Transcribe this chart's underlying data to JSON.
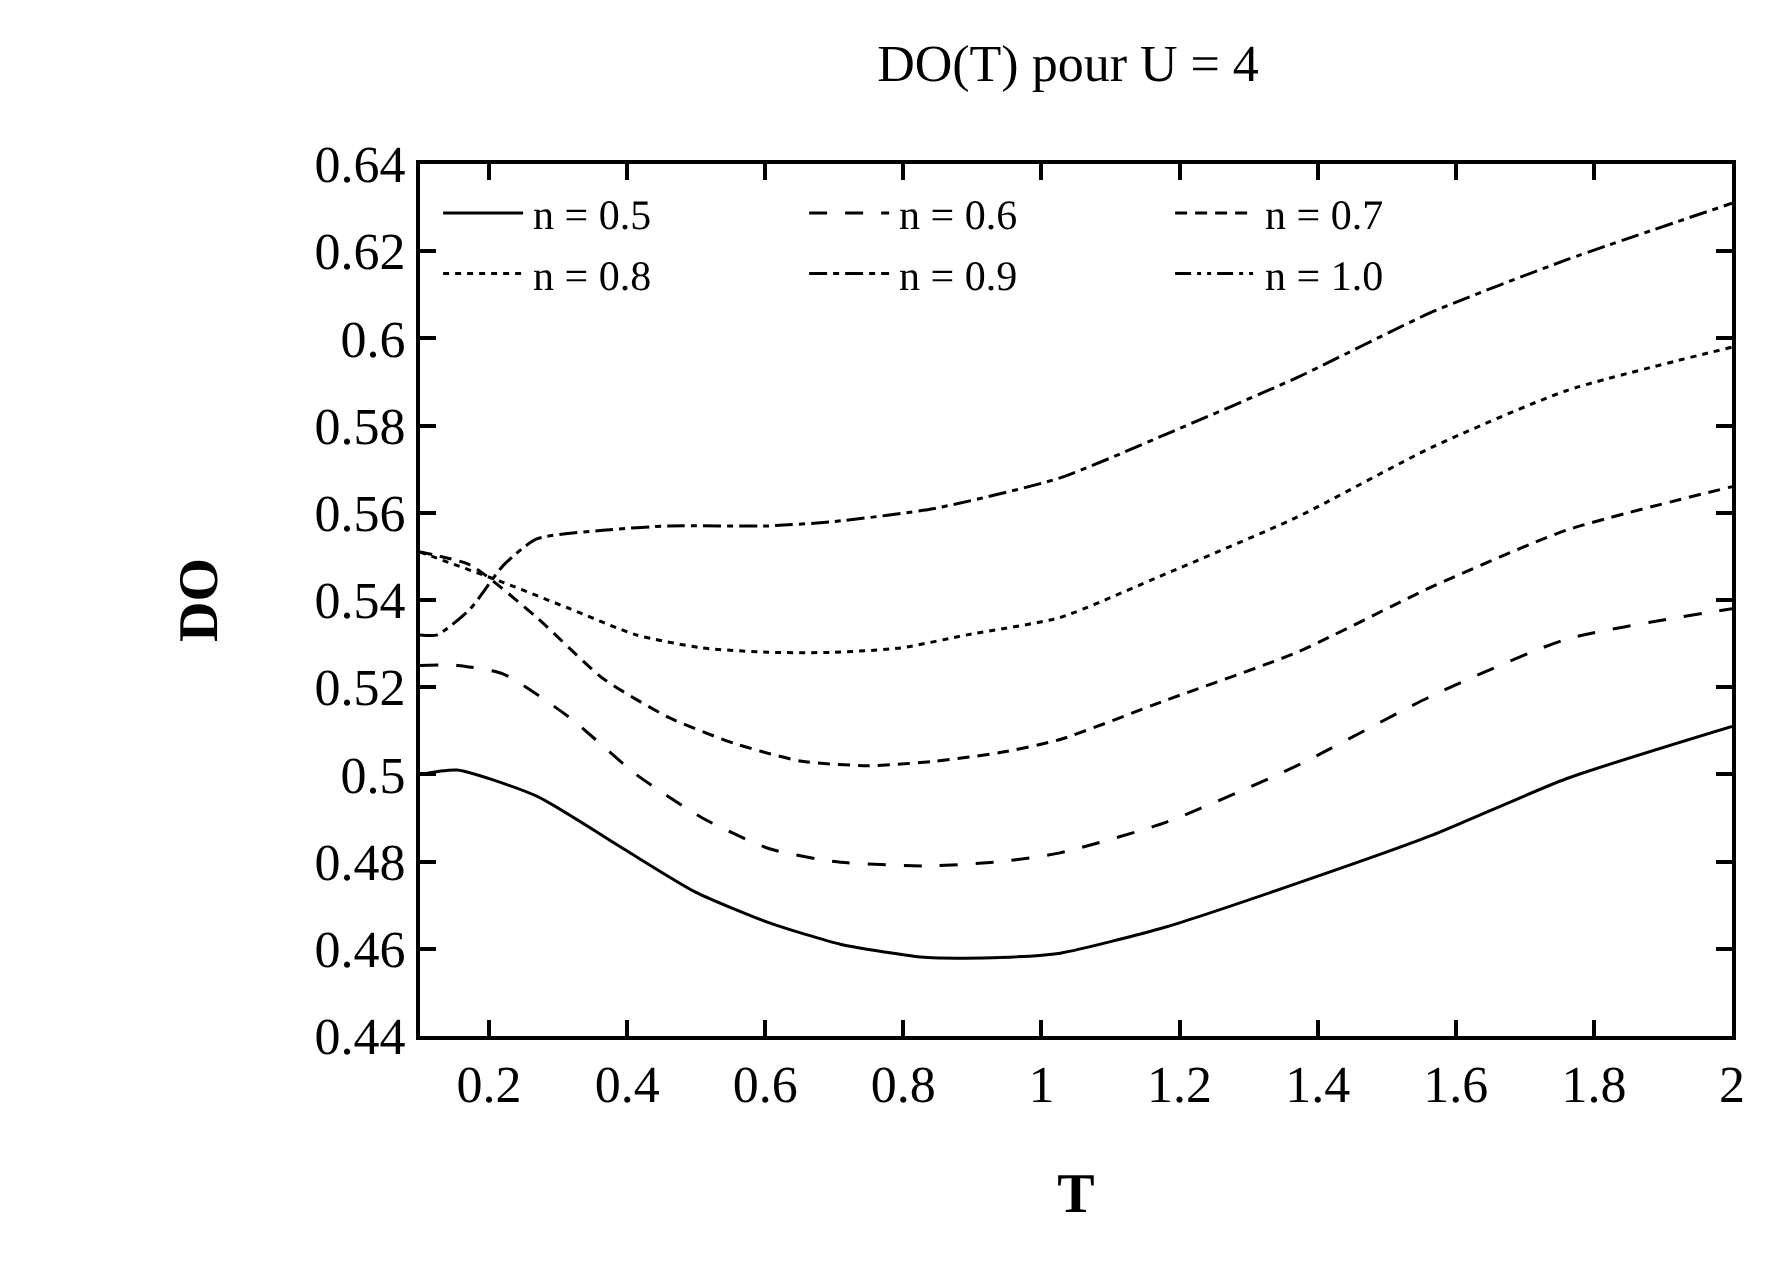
{
  "chart_data": {
    "type": "line",
    "title": "DO(T) pour U = 4",
    "xlabel": "T",
    "ylabel": "DO",
    "xlim": [
      0.1,
      2
    ],
    "xticks": [
      0.2,
      0.4,
      0.6,
      0.8,
      1,
      1.2,
      1.4,
      1.6,
      1.8,
      2
    ],
    "ylim": [
      0.44,
      0.64
    ],
    "yticks": [
      0.44,
      0.46,
      0.48,
      0.5,
      0.52,
      0.54,
      0.56,
      0.58,
      0.6,
      0.62,
      0.64
    ],
    "legend": "top left",
    "marker": "none",
    "series": [
      {
        "name": "n = 0.5",
        "color": "#000000",
        "line_style": "solid",
        "x": [
          0.1,
          0.154,
          0.269,
          0.394,
          0.499,
          0.605,
          0.71,
          0.835,
          0.94,
          1.027,
          1.18,
          1.37,
          1.565,
          1.76,
          2.0
        ],
        "values": [
          0.5,
          0.501,
          0.495,
          0.483,
          0.473,
          0.466,
          0.461,
          0.458,
          0.458,
          0.459,
          0.465,
          0.475,
          0.486,
          0.499,
          0.511
        ]
      },
      {
        "name": "n = 0.6",
        "color": "#000000",
        "line_style": "dashed",
        "x": [
          0.1,
          0.154,
          0.221,
          0.317,
          0.413,
          0.509,
          0.605,
          0.7,
          0.835,
          0.94,
          1.027,
          1.18,
          1.37,
          1.565,
          1.76,
          2.0
        ],
        "values": [
          0.525,
          0.525,
          0.523,
          0.513,
          0.5,
          0.49,
          0.483,
          0.48,
          0.479,
          0.48,
          0.482,
          0.489,
          0.502,
          0.518,
          0.531,
          0.538
        ]
      },
      {
        "name": "n = 0.7",
        "color": "#000000",
        "line_style": "shortdash",
        "x": [
          0.1,
          0.173,
          0.269,
          0.365,
          0.461,
          0.557,
          0.653,
          0.749,
          0.845,
          0.94,
          1.027,
          1.18,
          1.37,
          1.565,
          1.76,
          2.0
        ],
        "values": [
          0.551,
          0.548,
          0.536,
          0.522,
          0.513,
          0.507,
          0.503,
          0.502,
          0.503,
          0.505,
          0.508,
          0.517,
          0.528,
          0.543,
          0.556,
          0.566
        ]
      },
      {
        "name": "n = 0.8",
        "color": "#000000",
        "line_style": "dotted",
        "x": [
          0.1,
          0.221,
          0.317,
          0.413,
          0.509,
          0.605,
          0.7,
          0.796,
          0.892,
          1.027,
          1.18,
          1.37,
          1.565,
          1.76,
          2.0
        ],
        "values": [
          0.551,
          0.544,
          0.538,
          0.532,
          0.529,
          0.528,
          0.528,
          0.529,
          0.532,
          0.536,
          0.546,
          0.559,
          0.575,
          0.588,
          0.598
        ]
      },
      {
        "name": "n = 0.9",
        "color": "#000000",
        "line_style": "dashdot",
        "x": [
          0.1,
          0.125,
          0.173,
          0.221,
          0.269,
          0.365,
          0.461,
          0.605,
          0.7,
          0.845,
          1.027,
          1.18,
          1.37,
          1.565,
          1.76,
          2.0
        ],
        "values": [
          0.532,
          0.532,
          0.538,
          0.548,
          0.554,
          0.556,
          0.557,
          0.557,
          0.558,
          0.561,
          0.568,
          0.578,
          0.591,
          0.606,
          0.618,
          0.631
        ]
      },
      {
        "name": "n = 1.0",
        "color": "#000000",
        "line_style": "dashdotdot"
      }
    ]
  }
}
